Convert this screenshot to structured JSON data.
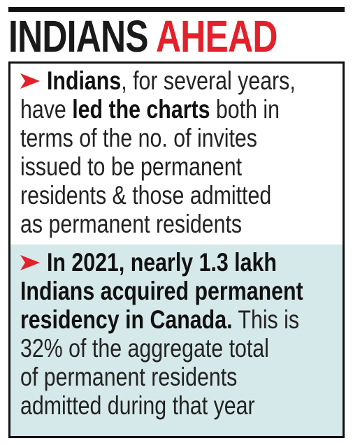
{
  "header": {
    "title": [
      "INDIANS",
      "AHEAD"
    ]
  },
  "bullets": [
    {
      "lines": [
        [
          "Indians",
          ", for several years,"
        ],
        [
          "have ",
          "led the charts",
          " both in"
        ],
        [
          "terms of the no. of invites"
        ],
        [
          "issued to be permanent"
        ],
        [
          "residents & those admitted"
        ],
        [
          "as permanent residents"
        ]
      ]
    },
    {
      "lines": [
        [
          "In 2021, nearly 1.3 lakh"
        ],
        [
          "Indians acquired permanent"
        ],
        [
          "residency in Canada.",
          " This is"
        ],
        [
          "32% of the aggregate total"
        ],
        [
          "of permanent residents"
        ],
        [
          "admitted during that year"
        ]
      ]
    }
  ]
}
